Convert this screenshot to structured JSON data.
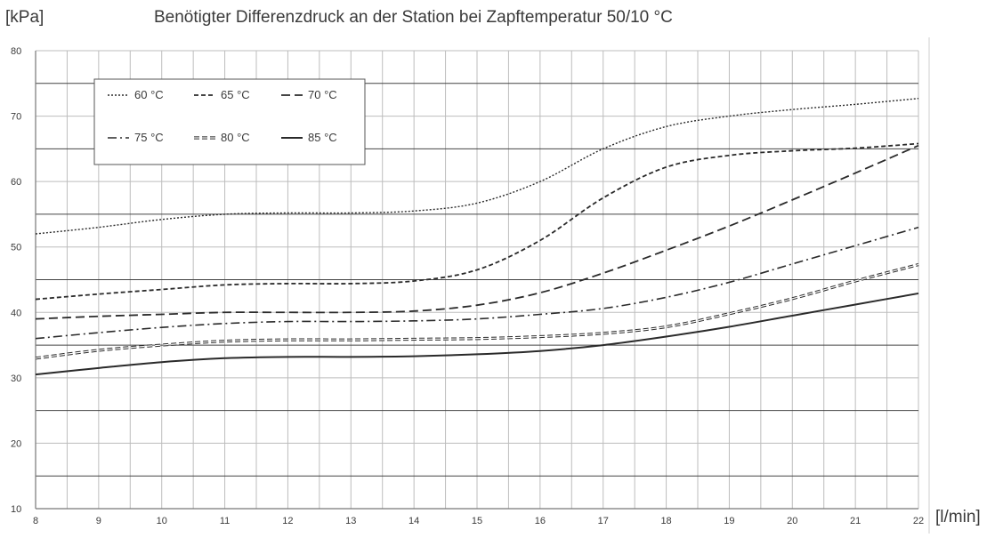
{
  "chart_data": {
    "type": "line",
    "title": "Benötigter Differenzdruck an der Station bei Zapftemperatur 50/10 °C",
    "ylabel": "[kPa]",
    "xlabel": "[l/min]",
    "xlim": [
      8,
      22
    ],
    "ylim": [
      10,
      80
    ],
    "xticks": [
      8,
      9,
      10,
      11,
      12,
      13,
      14,
      15,
      16,
      17,
      18,
      19,
      20,
      21,
      22
    ],
    "yticks": [
      10,
      20,
      30,
      40,
      50,
      60,
      70,
      80
    ],
    "grid": true,
    "legend_position": "top-left",
    "x": [
      8,
      9,
      10,
      11,
      12,
      13,
      14,
      15,
      16,
      17,
      18,
      19,
      20,
      21,
      22
    ],
    "series": [
      {
        "name": "60 °C",
        "style": "dotted",
        "values": [
          52,
          53,
          54.2,
          55,
          55.2,
          55.2,
          55.5,
          56.7,
          60,
          65,
          68.4,
          70,
          71,
          71.8,
          72.7
        ]
      },
      {
        "name": "65 °C",
        "style": "dashed-short",
        "values": [
          42,
          42.8,
          43.5,
          44.2,
          44.4,
          44.4,
          44.8,
          46.5,
          51,
          57.5,
          62.2,
          64,
          64.7,
          65.1,
          65.8
        ]
      },
      {
        "name": "70 °C",
        "style": "dashed-long",
        "values": [
          39,
          39.4,
          39.7,
          40,
          40,
          40,
          40.2,
          41.1,
          43,
          46,
          49.5,
          53.2,
          57.2,
          61.3,
          65.5
        ]
      },
      {
        "name": "75 °C",
        "style": "dash-dot",
        "values": [
          36,
          36.9,
          37.7,
          38.3,
          38.6,
          38.6,
          38.7,
          39,
          39.7,
          40.6,
          42.3,
          44.6,
          47.4,
          50.2,
          53
        ]
      },
      {
        "name": "80 °C",
        "style": "double",
        "values": [
          33,
          34.2,
          35,
          35.6,
          35.8,
          35.8,
          35.9,
          36,
          36.3,
          36.8,
          37.8,
          39.8,
          42.1,
          44.8,
          47.3
        ]
      },
      {
        "name": "85 °C",
        "style": "solid",
        "values": [
          30.5,
          31.5,
          32.4,
          33,
          33.2,
          33.2,
          33.3,
          33.6,
          34.1,
          35,
          36.3,
          37.8,
          39.5,
          41.2,
          42.9
        ]
      }
    ]
  },
  "colors": {
    "line": "#2a2a2a",
    "grid": "#bdbdbd",
    "major_grid": "#444444",
    "axis": "#777777",
    "text": "#3a3a3a"
  }
}
